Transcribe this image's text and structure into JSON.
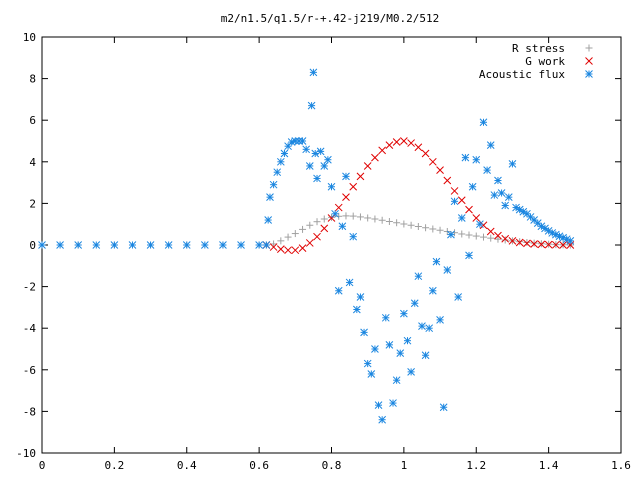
{
  "chart_data": {
    "type": "scatter",
    "title": "m2/n1.5/q1.5/r-+.42-j219/M0.2/512",
    "xlabel": "",
    "ylabel": "",
    "xlim": [
      0,
      1.6
    ],
    "ylim": [
      -10,
      10
    ],
    "xticks": [
      "0",
      "0.2",
      "0.4",
      "0.6",
      "0.8",
      "1",
      "1.2",
      "1.4",
      "1.6"
    ],
    "yticks": [
      "10",
      "8",
      "6",
      "4",
      "2",
      "0",
      "-2",
      "-4",
      "-6",
      "-8",
      "-10"
    ],
    "grid": false,
    "legend_position": "top-right",
    "series": [
      {
        "name": "R stress",
        "marker": "plus",
        "color": "#a0a0a0",
        "points": [
          [
            0.0,
            0
          ],
          [
            0.1,
            0
          ],
          [
            0.2,
            0
          ],
          [
            0.3,
            0
          ],
          [
            0.4,
            0
          ],
          [
            0.5,
            0
          ],
          [
            0.6,
            0
          ],
          [
            0.62,
            0
          ],
          [
            0.64,
            0.05
          ],
          [
            0.66,
            0.2
          ],
          [
            0.68,
            0.38
          ],
          [
            0.7,
            0.55
          ],
          [
            0.72,
            0.75
          ],
          [
            0.74,
            0.95
          ],
          [
            0.76,
            1.12
          ],
          [
            0.78,
            1.25
          ],
          [
            0.8,
            1.33
          ],
          [
            0.82,
            1.38
          ],
          [
            0.84,
            1.4
          ],
          [
            0.86,
            1.39
          ],
          [
            0.88,
            1.35
          ],
          [
            0.9,
            1.3
          ],
          [
            0.92,
            1.25
          ],
          [
            0.94,
            1.19
          ],
          [
            0.96,
            1.13
          ],
          [
            0.98,
            1.07
          ],
          [
            1.0,
            1.01
          ],
          [
            1.02,
            0.95
          ],
          [
            1.04,
            0.89
          ],
          [
            1.06,
            0.83
          ],
          [
            1.08,
            0.77
          ],
          [
            1.1,
            0.71
          ],
          [
            1.12,
            0.65
          ],
          [
            1.14,
            0.59
          ],
          [
            1.16,
            0.53
          ],
          [
            1.18,
            0.48
          ],
          [
            1.2,
            0.43
          ],
          [
            1.22,
            0.38
          ],
          [
            1.24,
            0.33
          ],
          [
            1.26,
            0.28
          ],
          [
            1.28,
            0.24
          ],
          [
            1.3,
            0.2
          ],
          [
            1.32,
            0.16
          ],
          [
            1.34,
            0.12
          ],
          [
            1.36,
            0.09
          ],
          [
            1.38,
            0.06
          ],
          [
            1.4,
            0.04
          ],
          [
            1.42,
            0.02
          ],
          [
            1.44,
            0.01
          ],
          [
            1.46,
            0.0
          ]
        ]
      },
      {
        "name": "G work",
        "marker": "cross",
        "color": "#e00000",
        "points": [
          [
            0.62,
            0
          ],
          [
            0.64,
            -0.1
          ],
          [
            0.66,
            -0.2
          ],
          [
            0.68,
            -0.25
          ],
          [
            0.7,
            -0.25
          ],
          [
            0.72,
            -0.15
          ],
          [
            0.74,
            0.1
          ],
          [
            0.76,
            0.4
          ],
          [
            0.78,
            0.8
          ],
          [
            0.8,
            1.3
          ],
          [
            0.82,
            1.8
          ],
          [
            0.84,
            2.3
          ],
          [
            0.86,
            2.8
          ],
          [
            0.88,
            3.3
          ],
          [
            0.9,
            3.8
          ],
          [
            0.92,
            4.2
          ],
          [
            0.94,
            4.55
          ],
          [
            0.96,
            4.8
          ],
          [
            0.98,
            4.95
          ],
          [
            1.0,
            5.0
          ],
          [
            1.02,
            4.9
          ],
          [
            1.04,
            4.7
          ],
          [
            1.06,
            4.4
          ],
          [
            1.08,
            4.0
          ],
          [
            1.1,
            3.6
          ],
          [
            1.12,
            3.1
          ],
          [
            1.14,
            2.6
          ],
          [
            1.16,
            2.15
          ],
          [
            1.18,
            1.7
          ],
          [
            1.2,
            1.3
          ],
          [
            1.22,
            0.95
          ],
          [
            1.24,
            0.65
          ],
          [
            1.26,
            0.45
          ],
          [
            1.28,
            0.3
          ],
          [
            1.3,
            0.2
          ],
          [
            1.32,
            0.12
          ],
          [
            1.34,
            0.08
          ],
          [
            1.36,
            0.05
          ],
          [
            1.38,
            0.03
          ],
          [
            1.4,
            0.02
          ],
          [
            1.42,
            0.01
          ],
          [
            1.44,
            0.0
          ],
          [
            1.46,
            0.0
          ]
        ]
      },
      {
        "name": "Acoustic flux",
        "marker": "star",
        "color": "#1a86e0",
        "points": [
          [
            0.0,
            0
          ],
          [
            0.05,
            0
          ],
          [
            0.1,
            0
          ],
          [
            0.15,
            0
          ],
          [
            0.2,
            0
          ],
          [
            0.25,
            0
          ],
          [
            0.3,
            0
          ],
          [
            0.35,
            0
          ],
          [
            0.4,
            0
          ],
          [
            0.45,
            0
          ],
          [
            0.5,
            0
          ],
          [
            0.55,
            0
          ],
          [
            0.6,
            0
          ],
          [
            0.62,
            0
          ],
          [
            0.625,
            1.2
          ],
          [
            0.63,
            2.3
          ],
          [
            0.64,
            2.9
          ],
          [
            0.65,
            3.5
          ],
          [
            0.66,
            4.0
          ],
          [
            0.67,
            4.4
          ],
          [
            0.68,
            4.75
          ],
          [
            0.69,
            4.95
          ],
          [
            0.7,
            5.0
          ],
          [
            0.71,
            5.0
          ],
          [
            0.72,
            5.0
          ],
          [
            0.73,
            4.6
          ],
          [
            0.74,
            3.8
          ],
          [
            0.75,
            8.3
          ],
          [
            0.745,
            6.7
          ],
          [
            0.755,
            4.4
          ],
          [
            0.76,
            3.2
          ],
          [
            0.77,
            4.5
          ],
          [
            0.78,
            3.8
          ],
          [
            0.79,
            4.1
          ],
          [
            0.8,
            2.8
          ],
          [
            0.81,
            1.5
          ],
          [
            0.82,
            -2.2
          ],
          [
            0.83,
            0.9
          ],
          [
            0.84,
            3.3
          ],
          [
            0.85,
            -1.8
          ],
          [
            0.86,
            0.4
          ],
          [
            0.87,
            -3.1
          ],
          [
            0.88,
            -2.5
          ],
          [
            0.89,
            -4.2
          ],
          [
            0.9,
            -5.7
          ],
          [
            0.91,
            -6.2
          ],
          [
            0.92,
            -5.0
          ],
          [
            0.93,
            -7.7
          ],
          [
            0.94,
            -8.4
          ],
          [
            0.95,
            -3.5
          ],
          [
            0.96,
            -4.8
          ],
          [
            0.97,
            -7.6
          ],
          [
            0.98,
            -6.5
          ],
          [
            0.99,
            -5.2
          ],
          [
            1.0,
            -3.3
          ],
          [
            1.01,
            -4.6
          ],
          [
            1.02,
            -6.1
          ],
          [
            1.03,
            -2.8
          ],
          [
            1.04,
            -1.5
          ],
          [
            1.05,
            -3.9
          ],
          [
            1.06,
            -5.3
          ],
          [
            1.07,
            -4.0
          ],
          [
            1.08,
            -2.2
          ],
          [
            1.09,
            -0.8
          ],
          [
            1.1,
            -3.6
          ],
          [
            1.11,
            -7.8
          ],
          [
            1.12,
            -1.2
          ],
          [
            1.13,
            0.5
          ],
          [
            1.14,
            2.1
          ],
          [
            1.15,
            -2.5
          ],
          [
            1.16,
            1.3
          ],
          [
            1.17,
            4.2
          ],
          [
            1.18,
            -0.5
          ],
          [
            1.19,
            2.8
          ],
          [
            1.2,
            4.1
          ],
          [
            1.21,
            1.0
          ],
          [
            1.22,
            5.9
          ],
          [
            1.23,
            3.6
          ],
          [
            1.24,
            4.8
          ],
          [
            1.25,
            2.4
          ],
          [
            1.26,
            3.1
          ],
          [
            1.27,
            2.5
          ],
          [
            1.28,
            1.9
          ],
          [
            1.29,
            2.3
          ],
          [
            1.3,
            3.9
          ],
          [
            1.31,
            1.8
          ],
          [
            1.32,
            1.7
          ],
          [
            1.33,
            1.6
          ],
          [
            1.34,
            1.5
          ],
          [
            1.35,
            1.35
          ],
          [
            1.36,
            1.2
          ],
          [
            1.37,
            1.05
          ],
          [
            1.38,
            0.9
          ],
          [
            1.39,
            0.8
          ],
          [
            1.4,
            0.68
          ],
          [
            1.41,
            0.58
          ],
          [
            1.42,
            0.5
          ],
          [
            1.43,
            0.42
          ],
          [
            1.44,
            0.35
          ],
          [
            1.45,
            0.28
          ],
          [
            1.46,
            0.2
          ]
        ]
      }
    ]
  }
}
